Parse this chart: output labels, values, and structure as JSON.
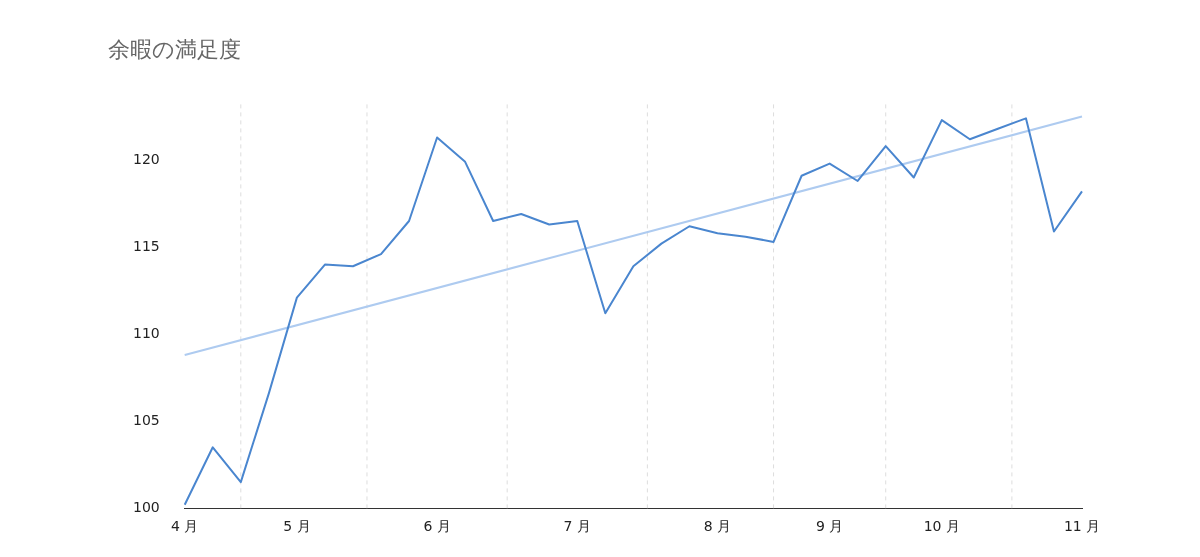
{
  "chart_data": {
    "type": "line",
    "title": "余暇の満足度",
    "categories": [
      "4 月",
      null,
      null,
      null,
      "5 月",
      null,
      null,
      null,
      null,
      "6 月",
      null,
      null,
      null,
      null,
      "7 月",
      null,
      null,
      null,
      null,
      "8 月",
      null,
      null,
      null,
      "9 月",
      null,
      null,
      null,
      "10 月",
      null,
      null,
      null,
      null,
      "11 月"
    ],
    "series": [
      {
        "color": "#4a86cf",
        "values": [
          100.2,
          103.5,
          101.5,
          106.6,
          112.1,
          114.0,
          113.9,
          114.6,
          116.5,
          121.3,
          119.9,
          116.5,
          116.9,
          116.3,
          116.5,
          111.2,
          113.9,
          115.2,
          116.2,
          115.8,
          115.6,
          115.3,
          119.1,
          119.8,
          118.8,
          120.8,
          119.0,
          122.3,
          121.2,
          121.8,
          122.4,
          115.9,
          118.2
        ]
      },
      {
        "type": "line",
        "color": "#aecbf0",
        "x": [
          "4 月",
          "11 月"
        ],
        "values": [
          108.8,
          122.5
        ]
      }
    ],
    "ylim": [
      100,
      123.2
    ],
    "yticks": [
      100,
      105,
      110,
      115,
      120
    ],
    "grid": "x",
    "legend": false,
    "marker": "none",
    "line_style": "solid"
  }
}
